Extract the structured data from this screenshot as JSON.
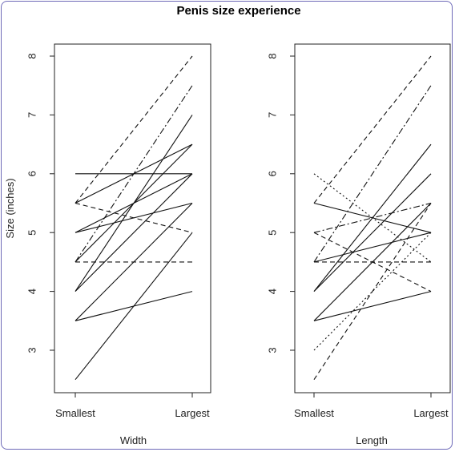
{
  "chart_data": {
    "type": "line",
    "title": "Penis size experience",
    "ylabel": "Size (inches)",
    "ylim": [
      2.5,
      8
    ],
    "yticks": [
      "3",
      "4",
      "5",
      "6",
      "7",
      "8"
    ],
    "grid": false,
    "panels": [
      {
        "xlabel": "Width",
        "categories": [
          "Smallest",
          "Largest"
        ],
        "series": [
          {
            "style": "solid",
            "values": [
              2.5,
              5.0
            ]
          },
          {
            "style": "solid",
            "values": [
              3.5,
              4.0
            ]
          },
          {
            "style": "solid",
            "values": [
              3.5,
              5.5
            ]
          },
          {
            "style": "solid",
            "values": [
              4.0,
              6.0
            ]
          },
          {
            "style": "solid",
            "values": [
              4.0,
              7.0
            ]
          },
          {
            "style": "dashed",
            "values": [
              4.5,
              4.5
            ]
          },
          {
            "style": "solid",
            "values": [
              4.5,
              6.5
            ]
          },
          {
            "style": "dashdot",
            "values": [
              4.5,
              7.5
            ]
          },
          {
            "style": "solid",
            "values": [
              5.0,
              5.5
            ]
          },
          {
            "style": "solid",
            "values": [
              5.0,
              6.0
            ]
          },
          {
            "style": "dashed",
            "values": [
              5.5,
              5.0
            ]
          },
          {
            "style": "solid",
            "values": [
              5.5,
              6.5
            ]
          },
          {
            "style": "dashed",
            "values": [
              5.5,
              8.0
            ]
          },
          {
            "style": "solid",
            "values": [
              6.0,
              6.0
            ]
          }
        ]
      },
      {
        "xlabel": "Length",
        "categories": [
          "Smallest",
          "Largest"
        ],
        "series": [
          {
            "style": "dashed",
            "values": [
              2.5,
              5.5
            ]
          },
          {
            "style": "dotted",
            "values": [
              3.0,
              5.0
            ]
          },
          {
            "style": "solid",
            "values": [
              3.5,
              4.0
            ]
          },
          {
            "style": "solid",
            "values": [
              3.5,
              5.5
            ]
          },
          {
            "style": "solid",
            "values": [
              4.0,
              6.5
            ]
          },
          {
            "style": "solid",
            "values": [
              4.0,
              6.0
            ]
          },
          {
            "style": "dashed",
            "values": [
              4.5,
              4.5
            ]
          },
          {
            "style": "solid",
            "values": [
              4.5,
              5.0
            ]
          },
          {
            "style": "dashdot",
            "values": [
              4.5,
              7.5
            ]
          },
          {
            "style": "dashed",
            "values": [
              5.0,
              4.0
            ]
          },
          {
            "style": "dashdot",
            "values": [
              5.0,
              5.5
            ]
          },
          {
            "style": "solid",
            "values": [
              5.5,
              5.0
            ]
          },
          {
            "style": "dashed",
            "values": [
              5.5,
              8.0
            ]
          },
          {
            "style": "dotted",
            "values": [
              6.0,
              4.5
            ]
          }
        ]
      }
    ]
  }
}
